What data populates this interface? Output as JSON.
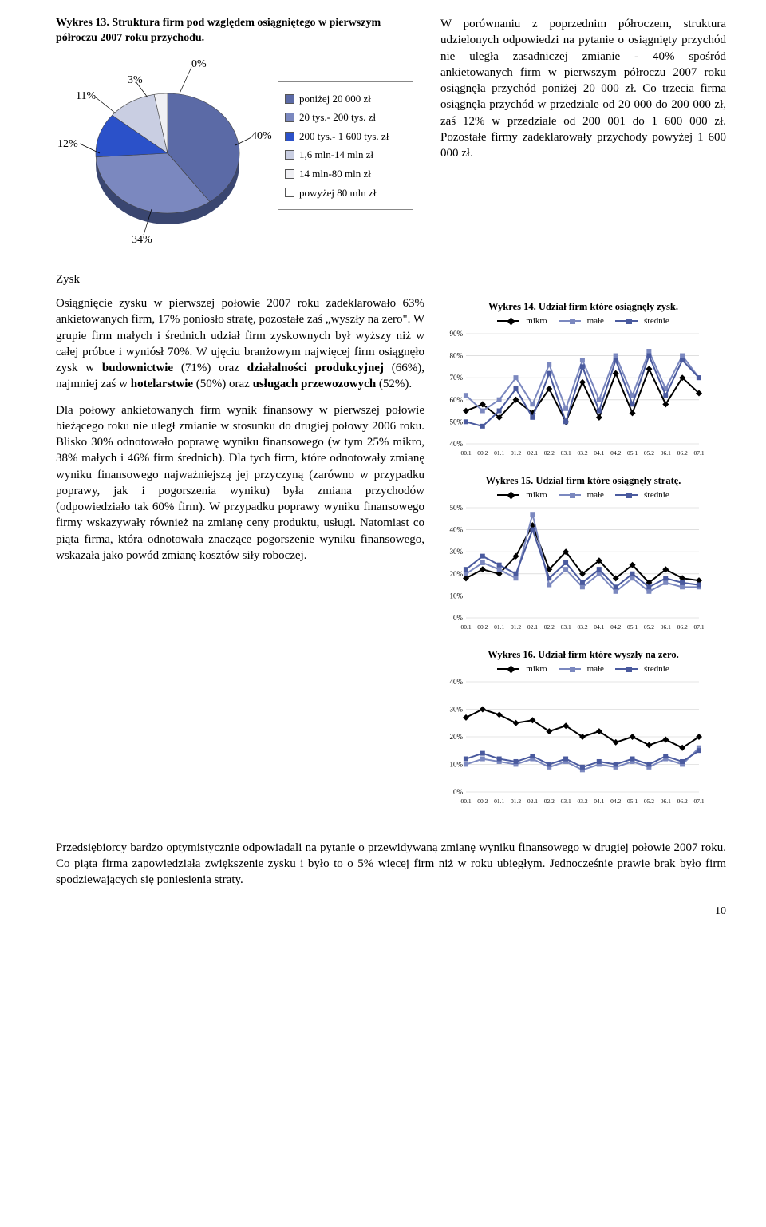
{
  "w13": {
    "title": "Wykres 13. Struktura firm pod względem osiągniętego w pierwszym półroczu 2007 roku przychodu.",
    "type": "pie",
    "slices": [
      {
        "label": "poniżej 20 000 zł",
        "pct": 40,
        "color": "#5b6aa6"
      },
      {
        "label": "20 tys.- 200 tys. zł",
        "pct": 34,
        "color": "#7b88bf"
      },
      {
        "label": "200 tys.- 1 600 tys. zł",
        "pct": 12,
        "color": "#2b51c9"
      },
      {
        "label": "1,6 mln-14 mln zł",
        "pct": 11,
        "color": "#c9cee2"
      },
      {
        "label": "14 mln-80 mln zł",
        "pct": 3,
        "color": "#f0f0f4"
      },
      {
        "label": "powyżej 80 mln zł",
        "pct": 0,
        "color": "#ffffff"
      }
    ],
    "callouts": {
      "p40": "40%",
      "p34": "34%",
      "p12": "12%",
      "p11": "11%",
      "p3": "3%",
      "p0": "0%"
    },
    "background": "#ffffff",
    "border": "#555555",
    "legend_fontsize": 13,
    "label_fontsize": 14
  },
  "paragraph_top_right": "W porównaniu z poprzednim półroczem, struktura udzielonych odpowiedzi na pytanie o osiągnięty przychód nie uległa zasadniczej zmianie - 40% spośród ankietowanych firm w pierwszym półroczu 2007 roku osiągnęła przychód poniżej 20 000 zł. Co trzecia firma osiągnęła przychód w przedziale od 20 000 do 200 000 zł, zaś 12% w przedziale od 200 001 do 1 600 000 zł. Pozostałe firmy zadeklarowały przychody powyżej 1 600 000 zł.",
  "zysk_header": "Zysk",
  "paragraph_zysk_1": "Osiągnięcie zysku w pierwszej połowie 2007 roku zadeklarowało 63% ankietowanych firm, 17% poniosło stratę, pozostałe zaś „wyszły na zero\". W grupie firm małych i średnich udział firm zyskownych był wyższy niż w całej próbce i wyniósł 70%. W ujęciu branżowym najwięcej firm osiągnęło zysk w budownictwie (71%) oraz działalności produkcyjnej (66%), najmniej zaś w hotelarstwie (50%) oraz usługach przewozowych (52%).",
  "paragraph_zysk_2": "Dla połowy ankietowanych firm wynik finansowy w pierwszej połowie bieżącego roku nie uległ zmianie w stosunku do drugiej połowy 2006 roku. Blisko 30% odnotowało poprawę wyniku finansowego (w tym 25% mikro, 38% małych i 46% firm średnich). Dla tych firm, które odnotowały zmianę wyniku finansowego najważniejszą jej przyczyną (zarówno w przypadku poprawy, jak i pogorszenia wyniku) była zmiana przychodów (odpowiedziało tak 60% firm). W przypadku poprawy wyniku finansowego firmy wskazywały również na zmianę ceny produktu, usługi. Natomiast co piąta firma, która odnotowała znaczące pogorszenie wyniku finansowego, wskazała jako powód zmianę kosztów siły roboczej.",
  "mini_series_colors": {
    "mikro": "#000000",
    "male": "#7b88bf",
    "srednie": "#4a5a9e"
  },
  "mini_legend": {
    "mikro": "mikro",
    "male": "małe",
    "srednie": "średnie"
  },
  "mini_marker_size": 4,
  "mini_line_width": 2,
  "mini_xlabels": [
    "00.1",
    "00.2",
    "01.1",
    "01.2",
    "02.1",
    "02.2",
    "03.1",
    "03.2",
    "04.1",
    "04.2",
    "05.1",
    "05.2",
    "06.1",
    "06.2",
    "07.1"
  ],
  "w14": {
    "title": "Wykres 14. Udział firm które osiągnęły zysk.",
    "type": "line",
    "ylim": [
      40,
      90
    ],
    "ytick_step": 10,
    "series": {
      "mikro": [
        55,
        58,
        52,
        60,
        54,
        65,
        50,
        68,
        52,
        72,
        54,
        74,
        58,
        70,
        63
      ],
      "male": [
        62,
        55,
        60,
        70,
        58,
        76,
        56,
        78,
        60,
        80,
        62,
        82,
        65,
        80,
        70
      ],
      "srednie": [
        50,
        48,
        55,
        65,
        52,
        72,
        50,
        75,
        55,
        78,
        58,
        80,
        62,
        78,
        70
      ]
    },
    "grid_color": "#cccccc",
    "background": "#ffffff",
    "label_fontsize": 10
  },
  "w15": {
    "title": "Wykres 15. Udział firm które osiągnęły stratę.",
    "type": "line",
    "ylim": [
      0,
      50
    ],
    "ytick_step": 10,
    "series": {
      "mikro": [
        18,
        22,
        20,
        28,
        42,
        22,
        30,
        20,
        26,
        18,
        24,
        16,
        22,
        18,
        17
      ],
      "male": [
        20,
        25,
        22,
        18,
        47,
        15,
        22,
        14,
        20,
        12,
        18,
        12,
        16,
        14,
        14
      ],
      "srednie": [
        22,
        28,
        24,
        20,
        40,
        18,
        25,
        16,
        22,
        14,
        20,
        14,
        18,
        16,
        15
      ]
    },
    "grid_color": "#cccccc",
    "background": "#ffffff",
    "label_fontsize": 10
  },
  "w16": {
    "title": "Wykres 16. Udział firm które wyszły na zero.",
    "type": "line",
    "ylim": [
      0,
      40
    ],
    "ytick_step": 10,
    "series": {
      "mikro": [
        27,
        30,
        28,
        25,
        26,
        22,
        24,
        20,
        22,
        18,
        20,
        17,
        19,
        16,
        20
      ],
      "male": [
        10,
        12,
        11,
        10,
        12,
        9,
        11,
        8,
        10,
        9,
        11,
        9,
        12,
        10,
        16
      ],
      "srednie": [
        12,
        14,
        12,
        11,
        13,
        10,
        12,
        9,
        11,
        10,
        12,
        10,
        13,
        11,
        15
      ]
    },
    "grid_color": "#cccccc",
    "background": "#ffffff",
    "label_fontsize": 10
  },
  "bottom_paragraph": "Przedsiębiorcy bardzo optymistycznie odpowiadali na pytanie o przewidywaną zmianę wyniku finansowego w drugiej połowie 2007 roku. Co piąta firma zapowiedziała zwiększenie zysku i było to o 5% więcej firm niż w roku ubiegłym. Jednocześnie prawie brak było firm spodziewających się poniesienia straty.",
  "page_number": "10"
}
